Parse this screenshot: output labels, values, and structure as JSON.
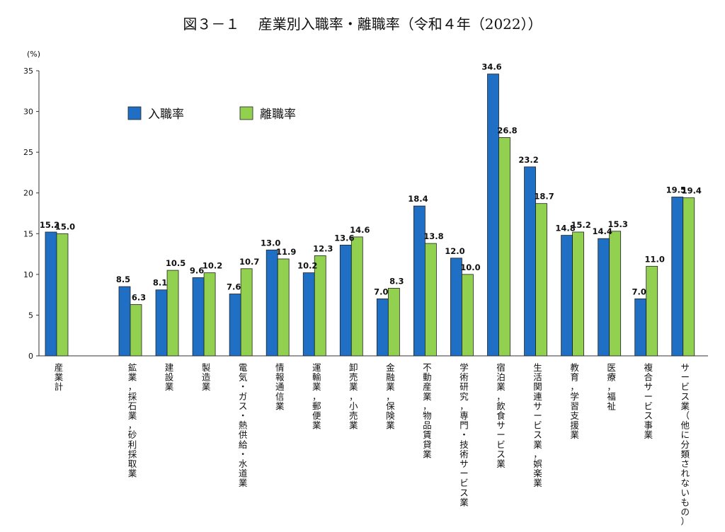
{
  "chart_data": {
    "type": "bar",
    "title": "図３－１　 産業別入職率・離職率（令和４年（2022））",
    "ylabel": "(%)",
    "ylim": [
      0,
      35
    ],
    "yticks": [
      0,
      5,
      10,
      15,
      20,
      25,
      30,
      35
    ],
    "grid": false,
    "legend_position": "top-left",
    "categories": [
      "産業計",
      "鉱業，採石業，砂利採取業",
      "建設業",
      "製造業",
      "電気・ガス・熱供給・水道業",
      "情報通信業",
      "運輸業，郵便業",
      "卸売業，小売業",
      "金融業，保険業",
      "不動産業，物品賃貸業",
      "学術研究，専門・技術サービス業",
      "宿泊業，飲食サービス業",
      "生活関連サービス業，娯楽業",
      "教育，学習支援業",
      "医療，福祉",
      "複合サービス事業",
      "サービス業（他に分類されないもの）"
    ],
    "series": [
      {
        "name": "入職率",
        "color": "#1f6fc5",
        "values": [
          15.2,
          8.5,
          8.1,
          9.6,
          7.6,
          13.0,
          10.2,
          13.6,
          7.0,
          18.4,
          12.0,
          34.6,
          23.2,
          14.8,
          14.4,
          7.0,
          19.5
        ],
        "labels": [
          "15.2",
          "8.5",
          "8.1",
          "9.6",
          "7.6",
          "13.0",
          "10.2",
          "13.6",
          "7.0",
          "18.4",
          "12.0",
          "34.6",
          "23.2",
          "14.8",
          "14.4",
          "7.0",
          "19.5"
        ]
      },
      {
        "name": "離職率",
        "color": "#92d050",
        "values": [
          15.0,
          6.3,
          10.5,
          10.2,
          10.7,
          11.9,
          12.3,
          14.6,
          8.3,
          13.8,
          10.0,
          26.8,
          18.7,
          15.2,
          15.3,
          11.0,
          19.4
        ],
        "labels": [
          "15.0",
          "6.3",
          "10.5",
          "10.2",
          "10.7",
          "11.9",
          "12.3",
          "14.6",
          "8.3",
          "13.8",
          "10.0",
          "26.8",
          "18.7",
          "15.2",
          "15.3",
          "11.0",
          "19.4"
        ]
      }
    ]
  }
}
